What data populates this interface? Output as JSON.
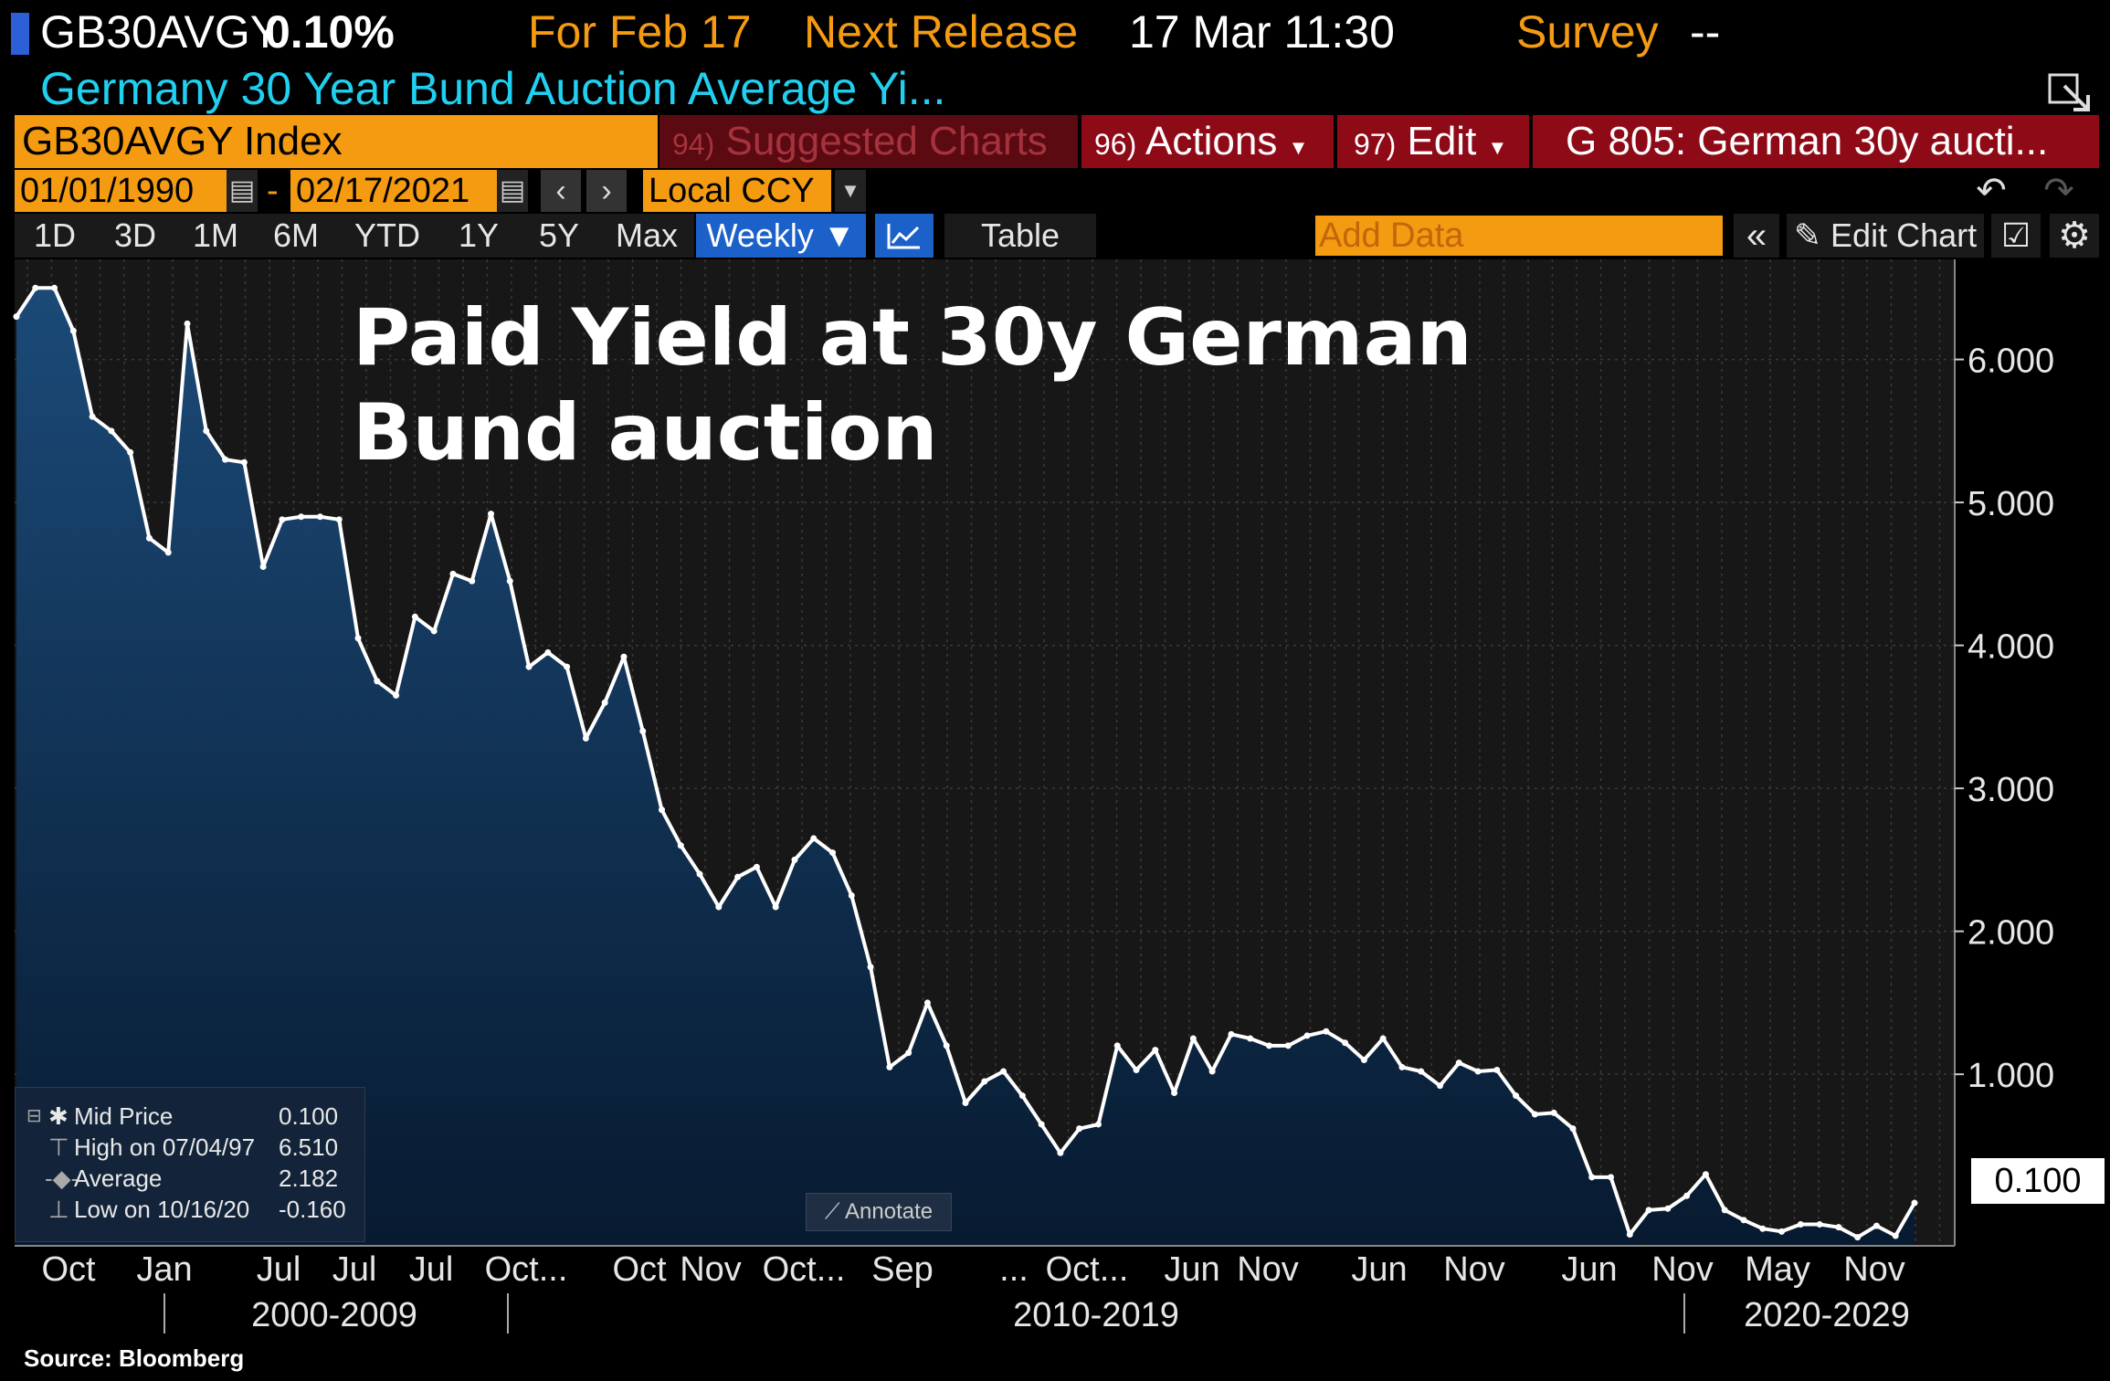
{
  "header": {
    "ticker": "GB30AVGY",
    "value": "0.10%",
    "for_label": "For Feb 17",
    "next_release_label": "Next Release",
    "next_release_value": "17 Mar 11:30",
    "survey_label": "Survey",
    "survey_value": "--",
    "description": "Germany 30 Year Bund Auction Average Yi..."
  },
  "menu": {
    "security": "GB30AVGY Index",
    "suggested_num": "94)",
    "suggested_label": "Suggested Charts",
    "actions_num": "96)",
    "actions_label": "Actions",
    "edit_num": "97)",
    "edit_label": "Edit",
    "chart_name": "G 805: German 30y aucti..."
  },
  "range": {
    "start_date": "01/01/1990",
    "end_date": "02/17/2021",
    "separator": "-",
    "currency": "Local CCY"
  },
  "toolbar": {
    "periods": [
      "1D",
      "3D",
      "1M",
      "6M",
      "YTD",
      "1Y",
      "5Y",
      "Max"
    ],
    "frequency": "Weekly",
    "table_label": "Table",
    "add_data_placeholder": "Add Data",
    "edit_chart_label": "Edit Chart"
  },
  "legend": {
    "mid_label": "Mid Price",
    "mid_value": "0.100",
    "high_label": "High on 07/04/97",
    "high_value": "6.510",
    "avg_label": "Average",
    "avg_value": "2.182",
    "low_label": "Low on 10/16/20",
    "low_value": "-0.160"
  },
  "annotate_label": "Annotate",
  "last_value_label": "0.100",
  "source": "Source: Bloomberg",
  "colors": {
    "orange": "#f49b12",
    "red": "#8f0a17",
    "cyan": "#20d0f0",
    "plot_bg": "#171717",
    "area_top": "#1b4a78",
    "area_bottom": "#061a30",
    "line": "#ffffff"
  },
  "chart_data": {
    "type": "area",
    "title": "Paid Yield at 30y German Bund auction",
    "ylim": [
      -0.2,
      6.7
    ],
    "yticks": [
      1.0,
      2.0,
      3.0,
      4.0,
      5.0,
      6.0
    ],
    "ytick_labels": [
      "1.000",
      "2.000",
      "3.000",
      "4.000",
      "5.000",
      "6.000"
    ],
    "x_tick_labels": [
      "Oct",
      "Jan",
      "Jul",
      "Jul",
      "Jul",
      "Oct...",
      "Oct",
      "Nov",
      "Oct...",
      "Sep",
      "...",
      "Oct...",
      "Jun",
      "Nov",
      "Jun",
      "Nov",
      "Jun",
      "Nov",
      "May",
      "Nov"
    ],
    "decade_labels": [
      "2000-2009",
      "2010-2019",
      "2020-2029"
    ],
    "series": [
      {
        "name": "GB30AVGY Index",
        "values": [
          6.3,
          6.5,
          6.5,
          6.2,
          5.6,
          5.5,
          5.35,
          4.75,
          4.65,
          6.25,
          5.5,
          5.3,
          5.28,
          4.55,
          4.88,
          4.9,
          4.9,
          4.88,
          4.05,
          3.75,
          3.65,
          4.2,
          4.1,
          4.5,
          4.45,
          4.92,
          4.45,
          3.85,
          3.95,
          3.85,
          3.35,
          3.6,
          3.92,
          3.4,
          2.85,
          2.6,
          2.4,
          2.17,
          2.38,
          2.45,
          2.17,
          2.5,
          2.65,
          2.55,
          2.25,
          1.75,
          1.05,
          1.15,
          1.5,
          1.2,
          0.8,
          0.95,
          1.02,
          0.85,
          0.65,
          0.45,
          0.62,
          0.65,
          1.2,
          1.03,
          1.17,
          0.87,
          1.25,
          1.02,
          1.28,
          1.25,
          1.2,
          1.2,
          1.27,
          1.3,
          1.22,
          1.1,
          1.25,
          1.05,
          1.02,
          0.92,
          1.08,
          1.02,
          1.03,
          0.85,
          0.72,
          0.73,
          0.62,
          0.28,
          0.28,
          -0.12,
          0.05,
          0.06,
          0.15,
          0.3,
          0.05,
          -0.02,
          -0.08,
          -0.1,
          -0.05,
          -0.05,
          -0.07,
          -0.14,
          -0.06,
          -0.13,
          0.1
        ]
      }
    ]
  }
}
